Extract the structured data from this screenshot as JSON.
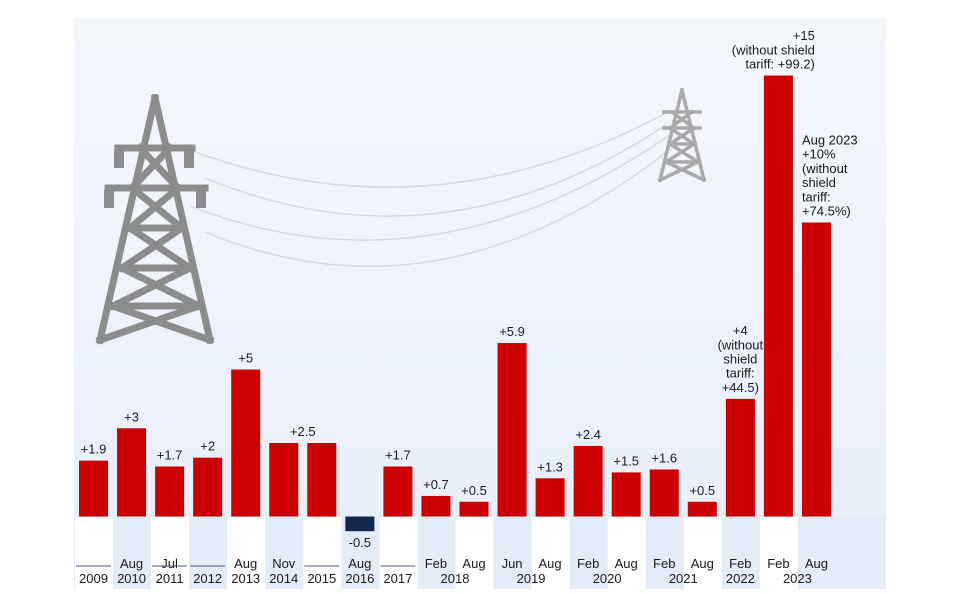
{
  "colors": {
    "positive": "#cc0000",
    "negative": "#14264a",
    "pylon": "#8c8c8c",
    "pylon_far": "#a9a9a9",
    "wire": "#d5d9df"
  },
  "chart_data": {
    "type": "bar",
    "title": "",
    "xlabel": "",
    "ylabel": "",
    "ylim": [
      -1,
      16
    ],
    "grid": false,
    "categories": [
      "2009",
      "Aug 2010",
      "Jul 2011",
      "2012",
      "Aug 2013",
      "Nov 2014",
      "2015",
      "Aug 2016",
      "2017",
      "Feb 2018",
      "Aug 2018",
      "Jun 2019",
      "Aug 2019",
      "Feb 2020",
      "Aug 2020",
      "Feb 2021",
      "Aug 2021",
      "Feb 2022",
      "Feb 2023",
      "Aug 2023"
    ],
    "values": [
      1.9,
      3,
      1.7,
      2,
      5,
      2.5,
      2.5,
      -0.5,
      1.7,
      0.7,
      0.5,
      5.9,
      1.3,
      2.4,
      1.5,
      1.6,
      0.5,
      4,
      15,
      10
    ],
    "bars": [
      {
        "value": 1.9,
        "label": [
          "+1.9"
        ],
        "month": "",
        "year": "2009",
        "shaded": false
      },
      {
        "value": 3,
        "label": [
          "+3"
        ],
        "month": "Aug",
        "year": "2010",
        "shaded": true
      },
      {
        "value": 1.7,
        "label": [
          "+1.7"
        ],
        "month": "Jul",
        "year": "2011",
        "shaded": false
      },
      {
        "value": 2,
        "label": [
          "+2"
        ],
        "month": "",
        "year": "2012",
        "shaded": true
      },
      {
        "value": 5,
        "label": [
          "+5"
        ],
        "month": "Aug",
        "year": "2013",
        "shaded": false
      },
      {
        "value": 2.5,
        "label": [
          "+2.5"
        ],
        "month": "Nov",
        "year": "2014",
        "shaded": true,
        "label_center_shift": 0.5
      },
      {
        "value": 2.5,
        "label": [],
        "month": "",
        "year": "2015",
        "shaded": false
      },
      {
        "value": -0.5,
        "label": [
          "-0.5"
        ],
        "month": "Aug",
        "year": "2016",
        "shaded": true
      },
      {
        "value": 1.7,
        "label": [
          "+1.7"
        ],
        "month": "",
        "year": "2017",
        "shaded": false
      },
      {
        "value": 0.7,
        "label": [
          "+0.7"
        ],
        "month": "Feb",
        "year": "",
        "shaded": true
      },
      {
        "value": 0.5,
        "label": [
          "+0.5"
        ],
        "month": "Aug",
        "year": "",
        "shaded": false
      },
      {
        "value": 5.9,
        "label": [
          "+5.9"
        ],
        "month": "Jun",
        "year": "",
        "shaded": true
      },
      {
        "value": 1.3,
        "label": [
          "+1.3"
        ],
        "month": "Aug",
        "year": "",
        "shaded": false
      },
      {
        "value": 2.4,
        "label": [
          "+2.4"
        ],
        "month": "Feb",
        "year": "",
        "shaded": true
      },
      {
        "value": 1.5,
        "label": [
          "+1.5"
        ],
        "month": "Aug",
        "year": "",
        "shaded": false
      },
      {
        "value": 1.6,
        "label": [
          "+1.6"
        ],
        "month": "Feb",
        "year": "",
        "shaded": true
      },
      {
        "value": 0.5,
        "label": [
          "+0.5"
        ],
        "month": "Aug",
        "year": "",
        "shaded": false
      },
      {
        "value": 4,
        "label": [
          "+4",
          "(without",
          "shield",
          "tariff:",
          "+44.5)"
        ],
        "month": "Feb",
        "year": "2022",
        "shaded": true
      },
      {
        "value": 15,
        "label": [
          "+15",
          "(without shield",
          "tariff: +99.2)"
        ],
        "month": "Feb",
        "year": "",
        "shaded": false,
        "label_align": "end"
      },
      {
        "value": 10,
        "label": [
          "Aug 2023",
          "+10%",
          "(without",
          "shield",
          "tariff:",
          "+74.5%)"
        ],
        "month": "Aug",
        "year": "",
        "shaded": true,
        "label_align": "start"
      }
    ],
    "group_years": [
      {
        "text": "2018",
        "from": 9,
        "to": 10
      },
      {
        "text": "2019",
        "from": 11,
        "to": 12
      },
      {
        "text": "2020",
        "from": 13,
        "to": 14
      },
      {
        "text": "2021",
        "from": 15,
        "to": 16
      },
      {
        "text": "2023",
        "from": 18,
        "to": 19
      }
    ],
    "dashes": [
      0,
      2,
      3,
      6,
      8
    ]
  }
}
